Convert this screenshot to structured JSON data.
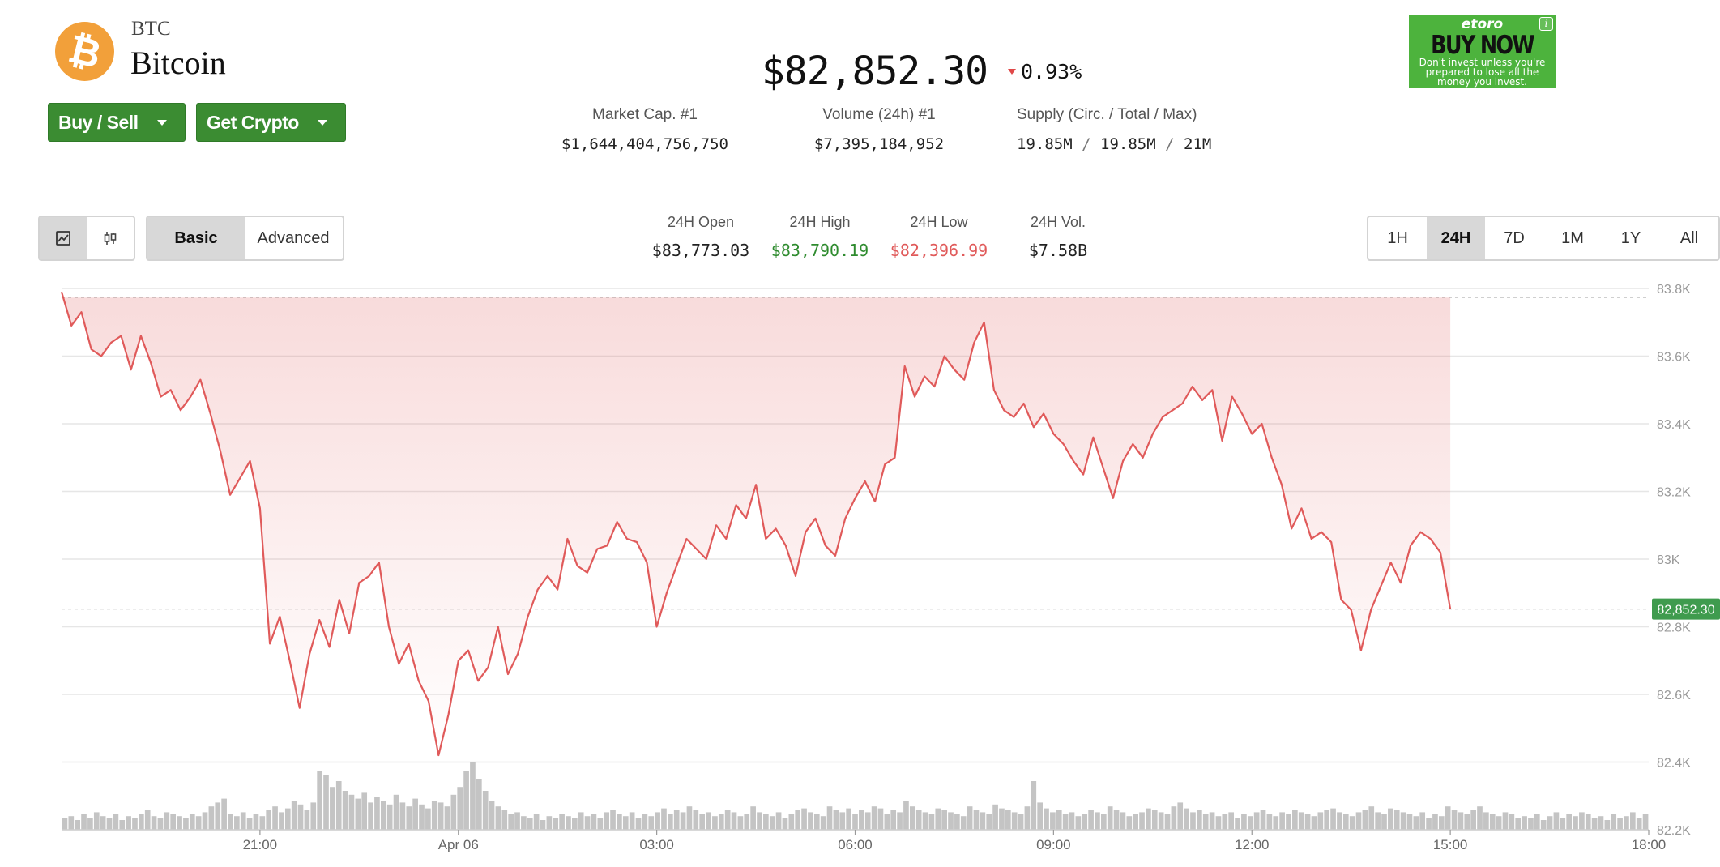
{
  "coin": {
    "ticker": "BTC",
    "name": "Bitcoin",
    "logo_icon": "bitcoin-icon",
    "logo_glyph": "₿",
    "logo_color": "#f2a03a"
  },
  "actions": {
    "buy_sell": "Buy / Sell",
    "get_crypto": "Get Crypto",
    "button_color": "#3b8c32"
  },
  "price": {
    "value": "$82,852.30",
    "change": "0.93%",
    "direction": "down",
    "down_color": "#e04848"
  },
  "stats": {
    "market_cap_label": "Market Cap. #1",
    "market_cap_value": "$1,644,404,756,750",
    "volume_label": "Volume (24h) #1",
    "volume_value": "$7,395,184,952",
    "supply_label": "Supply (Circ. / Total / Max)",
    "supply_circ": "19.85M",
    "supply_total": "19.85M",
    "supply_max": "21M",
    "supply_sep": "/"
  },
  "ad": {
    "brand": "etoro",
    "cta": "BUY NOW",
    "disclaimer": "Don't invest unless you're prepared to lose all the money you invest.",
    "info_icon": "info-icon",
    "info_glyph": "i",
    "background": "#4db33d"
  },
  "toolbar": {
    "chart_types": [
      {
        "icon": "line-chart-icon",
        "active": true
      },
      {
        "icon": "candlestick-icon",
        "active": false
      }
    ],
    "modes": [
      {
        "label": "Basic",
        "active": true
      },
      {
        "label": "Advanced",
        "active": false
      }
    ],
    "ranges": [
      {
        "label": "1H",
        "active": false
      },
      {
        "label": "24H",
        "active": true
      },
      {
        "label": "7D",
        "active": false
      },
      {
        "label": "1M",
        "active": false
      },
      {
        "label": "1Y",
        "active": false
      },
      {
        "label": "All",
        "active": false
      }
    ]
  },
  "ohlc": {
    "open_label": "24H Open",
    "open_value": "$83,773.03",
    "high_label": "24H High",
    "high_value": "$83,790.19",
    "high_color": "#2e8b2e",
    "low_label": "24H Low",
    "low_value": "$82,396.99",
    "low_color": "#e05a5a",
    "vol_label": "24H Vol.",
    "vol_value": "$7.58B"
  },
  "chart_data": {
    "type": "line",
    "x_label": "",
    "y_label": "",
    "y_ticks": [
      "83.8K",
      "83.6K",
      "83.4K",
      "83.2K",
      "83K",
      "82.8K",
      "82.6K",
      "82.4K",
      "82.2K"
    ],
    "y_tick_values": [
      83800,
      83600,
      83400,
      83200,
      83000,
      82800,
      82600,
      82400,
      82200
    ],
    "ylim": [
      82200,
      83800
    ],
    "x_ticks": [
      "21:00",
      "Apr 06",
      "03:00",
      "06:00",
      "09:00",
      "12:00",
      "15:00",
      "18:00"
    ],
    "x_tick_hours": [
      3,
      6,
      9,
      12,
      15,
      18,
      21,
      24
    ],
    "xlim_hours": [
      0,
      24
    ],
    "x_unit": "hours since 18:00 Apr 05",
    "current_price_label": "82,852.30",
    "current_price": 82852.3,
    "reference_open": 83773.03,
    "line_color": "#e05a5a",
    "price_badge_color": "#3f9b4e",
    "grid": true,
    "series": [
      {
        "name": "",
        "points": [
          [
            0.0,
            83790
          ],
          [
            0.15,
            83690
          ],
          [
            0.3,
            83730
          ],
          [
            0.45,
            83620
          ],
          [
            0.6,
            83600
          ],
          [
            0.75,
            83640
          ],
          [
            0.9,
            83660
          ],
          [
            1.05,
            83560
          ],
          [
            1.2,
            83660
          ],
          [
            1.35,
            83580
          ],
          [
            1.5,
            83480
          ],
          [
            1.65,
            83500
          ],
          [
            1.8,
            83440
          ],
          [
            1.95,
            83480
          ],
          [
            2.1,
            83530
          ],
          [
            2.25,
            83430
          ],
          [
            2.4,
            83320
          ],
          [
            2.55,
            83190
          ],
          [
            2.7,
            83240
          ],
          [
            2.85,
            83290
          ],
          [
            3.0,
            83150
          ],
          [
            3.15,
            82750
          ],
          [
            3.3,
            82830
          ],
          [
            3.45,
            82700
          ],
          [
            3.6,
            82560
          ],
          [
            3.75,
            82720
          ],
          [
            3.9,
            82820
          ],
          [
            4.05,
            82740
          ],
          [
            4.2,
            82880
          ],
          [
            4.35,
            82780
          ],
          [
            4.5,
            82930
          ],
          [
            4.65,
            82950
          ],
          [
            4.8,
            82990
          ],
          [
            4.95,
            82800
          ],
          [
            5.1,
            82690
          ],
          [
            5.25,
            82750
          ],
          [
            5.4,
            82640
          ],
          [
            5.55,
            82580
          ],
          [
            5.7,
            82420
          ],
          [
            5.85,
            82540
          ],
          [
            6.0,
            82700
          ],
          [
            6.15,
            82730
          ],
          [
            6.3,
            82640
          ],
          [
            6.45,
            82680
          ],
          [
            6.6,
            82800
          ],
          [
            6.75,
            82660
          ],
          [
            6.9,
            82720
          ],
          [
            7.05,
            82830
          ],
          [
            7.2,
            82910
          ],
          [
            7.35,
            82950
          ],
          [
            7.5,
            82910
          ],
          [
            7.65,
            83060
          ],
          [
            7.8,
            82980
          ],
          [
            7.95,
            82960
          ],
          [
            8.1,
            83030
          ],
          [
            8.25,
            83040
          ],
          [
            8.4,
            83110
          ],
          [
            8.55,
            83060
          ],
          [
            8.7,
            83050
          ],
          [
            8.85,
            82990
          ],
          [
            9.0,
            82800
          ],
          [
            9.15,
            82900
          ],
          [
            9.3,
            82980
          ],
          [
            9.45,
            83060
          ],
          [
            9.6,
            83030
          ],
          [
            9.75,
            83000
          ],
          [
            9.9,
            83100
          ],
          [
            10.05,
            83060
          ],
          [
            10.2,
            83160
          ],
          [
            10.35,
            83120
          ],
          [
            10.5,
            83220
          ],
          [
            10.65,
            83060
          ],
          [
            10.8,
            83090
          ],
          [
            10.95,
            83040
          ],
          [
            11.1,
            82950
          ],
          [
            11.25,
            83080
          ],
          [
            11.4,
            83120
          ],
          [
            11.55,
            83040
          ],
          [
            11.7,
            83010
          ],
          [
            11.85,
            83120
          ],
          [
            12.0,
            83180
          ],
          [
            12.15,
            83230
          ],
          [
            12.3,
            83170
          ],
          [
            12.45,
            83280
          ],
          [
            12.6,
            83300
          ],
          [
            12.75,
            83570
          ],
          [
            12.9,
            83480
          ],
          [
            13.05,
            83540
          ],
          [
            13.2,
            83510
          ],
          [
            13.35,
            83600
          ],
          [
            13.5,
            83560
          ],
          [
            13.65,
            83530
          ],
          [
            13.8,
            83640
          ],
          [
            13.95,
            83700
          ],
          [
            14.1,
            83500
          ],
          [
            14.25,
            83440
          ],
          [
            14.4,
            83420
          ],
          [
            14.55,
            83460
          ],
          [
            14.7,
            83390
          ],
          [
            14.85,
            83430
          ],
          [
            15.0,
            83370
          ],
          [
            15.15,
            83340
          ],
          [
            15.3,
            83290
          ],
          [
            15.45,
            83250
          ],
          [
            15.6,
            83360
          ],
          [
            15.75,
            83270
          ],
          [
            15.9,
            83180
          ],
          [
            16.05,
            83290
          ],
          [
            16.2,
            83340
          ],
          [
            16.35,
            83300
          ],
          [
            16.5,
            83370
          ],
          [
            16.65,
            83420
          ],
          [
            16.8,
            83440
          ],
          [
            16.95,
            83460
          ],
          [
            17.1,
            83510
          ],
          [
            17.25,
            83470
          ],
          [
            17.4,
            83500
          ],
          [
            17.55,
            83350
          ],
          [
            17.7,
            83480
          ],
          [
            17.85,
            83430
          ],
          [
            18.0,
            83370
          ],
          [
            18.15,
            83400
          ],
          [
            18.3,
            83300
          ],
          [
            18.45,
            83220
          ],
          [
            18.6,
            83090
          ],
          [
            18.75,
            83150
          ],
          [
            18.9,
            83060
          ],
          [
            19.05,
            83080
          ],
          [
            19.2,
            83050
          ],
          [
            19.35,
            82880
          ],
          [
            19.5,
            82850
          ],
          [
            19.65,
            82730
          ],
          [
            19.8,
            82850
          ],
          [
            19.95,
            82920
          ],
          [
            20.1,
            82990
          ],
          [
            20.25,
            82930
          ],
          [
            20.4,
            83040
          ],
          [
            20.55,
            83080
          ],
          [
            20.7,
            83060
          ],
          [
            20.85,
            83020
          ],
          [
            21.0,
            82852.3
          ]
        ]
      }
    ],
    "volume_bars": [
      6,
      7,
      5,
      8,
      6,
      9,
      7,
      6,
      8,
      5,
      7,
      6,
      8,
      10,
      7,
      6,
      9,
      8,
      7,
      6,
      8,
      7,
      9,
      12,
      14,
      16,
      8,
      7,
      9,
      6,
      8,
      7,
      10,
      12,
      9,
      11,
      15,
      13,
      10,
      14,
      30,
      28,
      22,
      25,
      20,
      18,
      16,
      19,
      14,
      17,
      15,
      13,
      18,
      14,
      12,
      16,
      13,
      11,
      15,
      14,
      12,
      18,
      22,
      30,
      35,
      26,
      20,
      15,
      12,
      10,
      8,
      9,
      7,
      6,
      8,
      5,
      7,
      6,
      8,
      7,
      6,
      9,
      7,
      8,
      6,
      9,
      10,
      8,
      7,
      9,
      6,
      8,
      7,
      9,
      11,
      8,
      10,
      9,
      12,
      10,
      8,
      9,
      7,
      8,
      10,
      9,
      7,
      8,
      12,
      9,
      8,
      7,
      9,
      6,
      8,
      10,
      11,
      9,
      8,
      7,
      12,
      10,
      9,
      11,
      8,
      10,
      9,
      12,
      11,
      8,
      10,
      9,
      15,
      12,
      10,
      9,
      8,
      11,
      10,
      9,
      8,
      7,
      12,
      10,
      9,
      8,
      13,
      11,
      10,
      9,
      8,
      12,
      25,
      14,
      11,
      9,
      10,
      8,
      9,
      7,
      8,
      10,
      9,
      8,
      12,
      10,
      9,
      7,
      8,
      9,
      11,
      10,
      9,
      8,
      12,
      14,
      11,
      9,
      10,
      8,
      9,
      7,
      8,
      9,
      6,
      8,
      7,
      9,
      10,
      8,
      7,
      9,
      8,
      10,
      9,
      8,
      7,
      9,
      10,
      11,
      9,
      8,
      7,
      9,
      10,
      12,
      9,
      8,
      11,
      10,
      9,
      8,
      7,
      9,
      6,
      8,
      7,
      12,
      10,
      9,
      8,
      10,
      12,
      9,
      8,
      7,
      9,
      8,
      6,
      7,
      6,
      8,
      5,
      7,
      9,
      6,
      8,
      7,
      9,
      8,
      6,
      7,
      5,
      8,
      6,
      7,
      9,
      6,
      8
    ]
  }
}
